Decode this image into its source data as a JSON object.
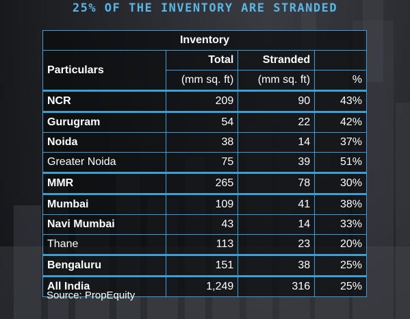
{
  "title": "25% OF THE INVENTORY ARE STRANDED",
  "table": {
    "group_header": "Inventory",
    "col_particulars": "Particulars",
    "col_total": "Total",
    "col_stranded": "Stranded",
    "unit_total": "(mm sq. ft)",
    "unit_stranded": "(mm sq. ft)",
    "unit_pct": "%",
    "rows": [
      {
        "name": "NCR",
        "bold": true,
        "total": "209",
        "stranded": "90",
        "pct": "43%"
      },
      {
        "name": "Gurugram",
        "bold": true,
        "total": "54",
        "stranded": "22",
        "pct": "42%"
      },
      {
        "name": "Noida",
        "bold": true,
        "total": "38",
        "stranded": "14",
        "pct": "37%"
      },
      {
        "name": "Greater Noida",
        "bold": false,
        "total": "75",
        "stranded": "39",
        "pct": "51%"
      },
      {
        "name": "MMR",
        "bold": true,
        "total": "265",
        "stranded": "78",
        "pct": "30%"
      },
      {
        "name": "Mumbai",
        "bold": true,
        "total": "109",
        "stranded": "41",
        "pct": "38%"
      },
      {
        "name": "Navi Mumbai",
        "bold": true,
        "total": "43",
        "stranded": "14",
        "pct": "33%"
      },
      {
        "name": "Thane",
        "bold": false,
        "total": "113",
        "stranded": "23",
        "pct": "20%"
      },
      {
        "name": "Bengaluru",
        "bold": true,
        "total": "151",
        "stranded": "38",
        "pct": "25%"
      },
      {
        "name": "All India",
        "bold": true,
        "total": "1,249",
        "stranded": "316",
        "pct": "25%"
      }
    ]
  },
  "source": "Source: PropEquity",
  "colors": {
    "title": "#59b7e6",
    "grid": "#3aa0d8",
    "text": "#ffffff"
  }
}
